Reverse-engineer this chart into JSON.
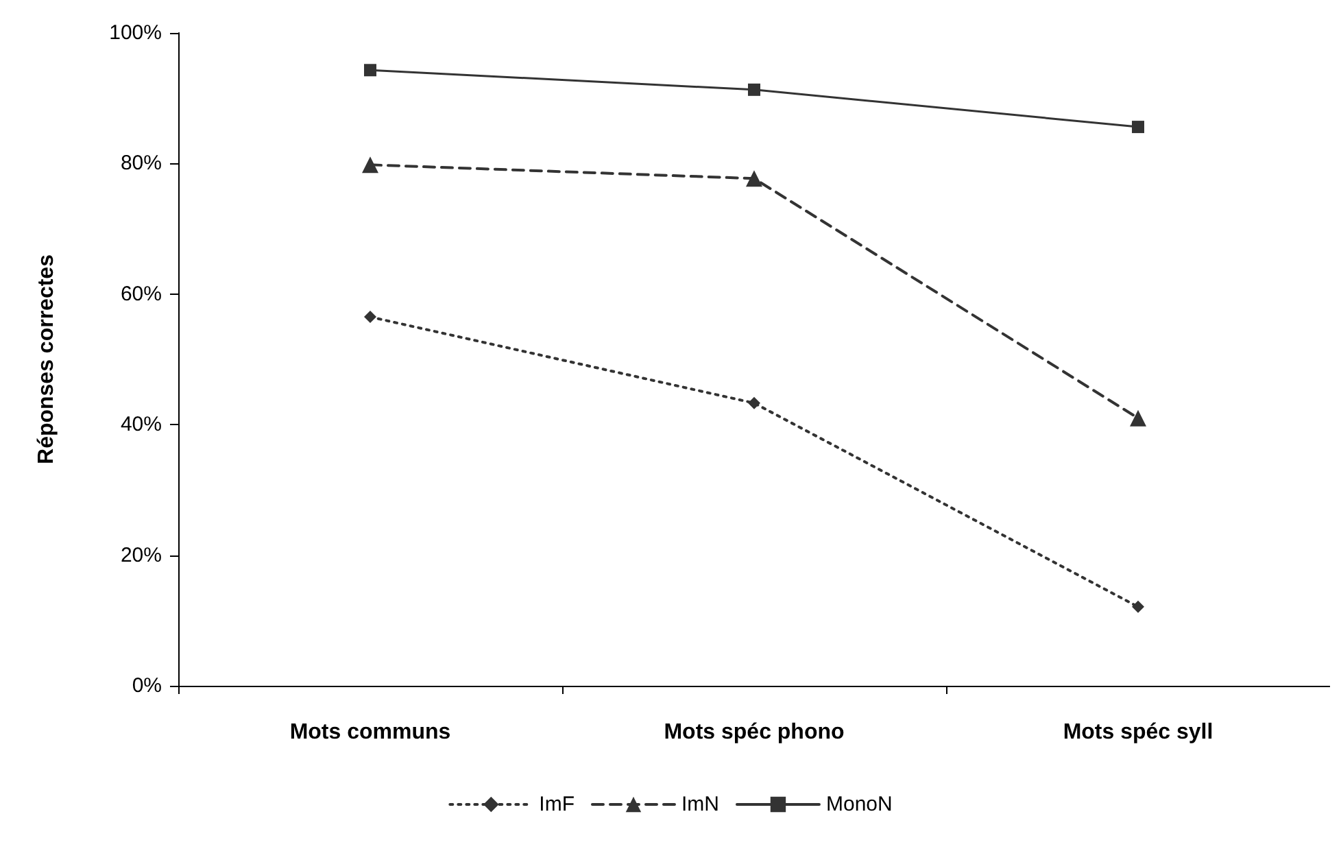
{
  "chart_data": {
    "type": "line",
    "ylabel": "Réponses correctes",
    "categories": [
      "Mots communs",
      "Mots spéc phono",
      "Mots spéc syll"
    ],
    "series": [
      {
        "name": "ImF",
        "color": "#333333",
        "values": [
          56.5,
          43.3,
          12.1
        ],
        "marker": "diamond",
        "line_style": "dotted"
      },
      {
        "name": "ImN",
        "color": "#333333",
        "values": [
          79.8,
          77.7,
          41.0
        ],
        "marker": "triangle",
        "line_style": "dashed"
      },
      {
        "name": "MonoN",
        "color": "#333333",
        "values": [
          94.3,
          91.3,
          85.6
        ],
        "marker": "square",
        "line_style": "solid"
      }
    ],
    "ylim": [
      0,
      100
    ],
    "yticks": [
      {
        "value": 0,
        "label": "0%"
      },
      {
        "value": 20,
        "label": "20%"
      },
      {
        "value": 40,
        "label": "40%"
      },
      {
        "value": 60,
        "label": "60%"
      },
      {
        "value": 80,
        "label": "80%"
      },
      {
        "value": 100,
        "label": "100%"
      }
    ],
    "grid": false,
    "legend": "bottom"
  }
}
